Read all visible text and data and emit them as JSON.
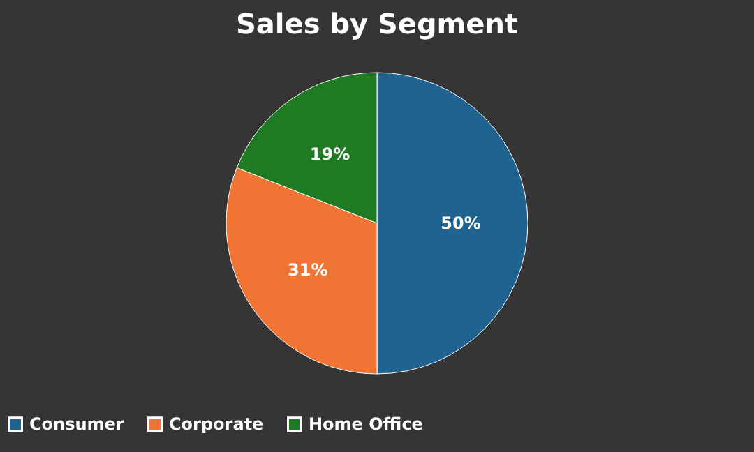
{
  "chart_data": {
    "type": "pie",
    "title": "Sales by Segment",
    "categories": [
      "Consumer",
      "Corporate",
      "Home Office"
    ],
    "values": [
      50,
      31,
      19
    ],
    "value_labels": [
      "50%",
      "31%",
      "19%"
    ],
    "colors": [
      "#1f6490",
      "#f07535",
      "#1f7a24"
    ],
    "legend": "bottom"
  }
}
